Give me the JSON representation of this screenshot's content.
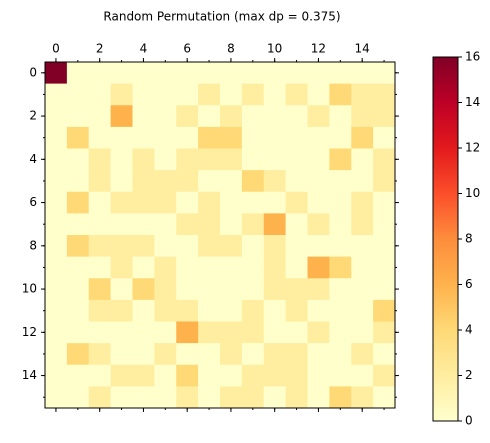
{
  "chart_data": {
    "type": "heatmap",
    "title": "Random Permutation (max dp = 0.375)",
    "colormap": "YlOrRd",
    "z": [
      [
        16,
        0,
        0,
        0,
        0,
        0,
        0,
        0,
        0,
        0,
        0,
        0,
        0,
        0,
        0,
        0
      ],
      [
        0,
        0,
        0,
        2,
        0,
        0,
        0,
        2,
        0,
        2,
        0,
        2,
        0,
        4,
        2,
        2
      ],
      [
        0,
        0,
        0,
        6,
        0,
        0,
        2,
        0,
        2,
        0,
        0,
        0,
        2,
        0,
        2,
        2
      ],
      [
        0,
        4,
        0,
        0,
        0,
        0,
        0,
        4,
        4,
        0,
        0,
        0,
        0,
        0,
        4,
        0
      ],
      [
        0,
        0,
        2,
        0,
        2,
        0,
        2,
        2,
        2,
        0,
        0,
        0,
        0,
        4,
        0,
        2
      ],
      [
        0,
        0,
        2,
        0,
        2,
        2,
        2,
        0,
        0,
        4,
        2,
        0,
        0,
        0,
        0,
        2
      ],
      [
        0,
        4,
        0,
        2,
        2,
        2,
        0,
        2,
        0,
        0,
        0,
        2,
        0,
        0,
        2,
        0
      ],
      [
        0,
        0,
        0,
        0,
        0,
        0,
        2,
        2,
        0,
        2,
        6,
        0,
        2,
        0,
        2,
        0
      ],
      [
        0,
        4,
        2,
        2,
        2,
        0,
        0,
        2,
        2,
        0,
        2,
        0,
        0,
        0,
        0,
        0
      ],
      [
        0,
        0,
        0,
        2,
        0,
        2,
        0,
        0,
        0,
        0,
        2,
        0,
        6,
        4,
        0,
        0
      ],
      [
        0,
        0,
        4,
        0,
        4,
        2,
        0,
        0,
        0,
        0,
        2,
        2,
        2,
        0,
        0,
        0
      ],
      [
        0,
        0,
        2,
        2,
        0,
        2,
        2,
        0,
        0,
        2,
        0,
        2,
        0,
        0,
        0,
        4
      ],
      [
        0,
        0,
        0,
        0,
        0,
        0,
        6,
        2,
        2,
        2,
        0,
        0,
        2,
        0,
        0,
        2
      ],
      [
        0,
        4,
        2,
        0,
        0,
        2,
        0,
        0,
        2,
        0,
        2,
        2,
        0,
        0,
        2,
        0
      ],
      [
        0,
        0,
        0,
        2,
        2,
        0,
        4,
        0,
        0,
        2,
        2,
        2,
        0,
        0,
        0,
        2
      ],
      [
        0,
        0,
        2,
        0,
        0,
        0,
        2,
        0,
        2,
        2,
        0,
        2,
        0,
        4,
        2,
        0
      ]
    ],
    "vlim": [
      0,
      16
    ],
    "xticks": [
      0,
      2,
      4,
      6,
      8,
      10,
      12,
      14
    ],
    "yticks": [
      0,
      2,
      4,
      6,
      8,
      10,
      12,
      14
    ],
    "colorbar_ticks": [
      0,
      2,
      4,
      6,
      8,
      10,
      12,
      14,
      16
    ]
  }
}
